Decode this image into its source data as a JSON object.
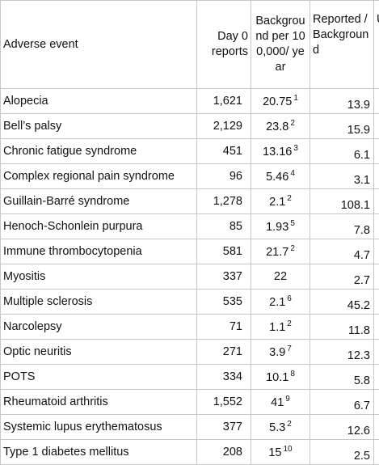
{
  "table": {
    "columns": [
      "Adverse event",
      "Day 0 reports",
      "Background per 100,000/ year",
      "Reported /Background",
      "U"
    ],
    "rows": [
      [
        "Alopecia",
        "1,621",
        {
          "value": "20.75",
          "ref": "1"
        },
        "13.9"
      ],
      [
        "Bell’s palsy",
        "2,129",
        {
          "value": "23.8",
          "ref": "2"
        },
        "15.9"
      ],
      [
        "Chronic fatigue syndrome",
        "451",
        {
          "value": "13.16",
          "ref": "3"
        },
        "6.1"
      ],
      [
        "Complex regional pain syndrome",
        "96",
        {
          "value": "5.46",
          "ref": "4"
        },
        "3.1"
      ],
      [
        "Guillain-Barré syndrome",
        "1,278",
        {
          "value": "2.1",
          "ref": "2"
        },
        "108.1"
      ],
      [
        "Henoch-Schonlein purpura",
        "85",
        {
          "value": "1.93",
          "ref": "5"
        },
        "7.8"
      ],
      [
        "Immune thrombocytopenia",
        "581",
        {
          "value": "21.7",
          "ref": "2"
        },
        "4.7"
      ],
      [
        "Myositis",
        "337",
        {
          "value": "22"
        },
        "2.7"
      ],
      [
        "Multiple sclerosis",
        "535",
        {
          "value": "2.1",
          "ref": "6"
        },
        "45.2"
      ],
      [
        "Narcolepsy",
        "71",
        {
          "value": "1.1",
          "ref": "2"
        },
        "11.8"
      ],
      [
        "Optic neuritis",
        "271",
        {
          "value": "3.9",
          "ref": "7"
        },
        "12.3"
      ],
      [
        "POTS",
        "334",
        {
          "value": "10.1",
          "ref": "8"
        },
        "5.8"
      ],
      [
        "Rheumatoid arthritis",
        "1,552",
        {
          "value": "41",
          "ref": "9"
        },
        "6.7"
      ],
      [
        "Systemic lupus erythematosus",
        "377",
        {
          "value": "5.3",
          "ref": "2"
        },
        "12.6"
      ],
      [
        "Type 1 diabetes mellitus",
        "208",
        {
          "value": "15",
          "ref": "10"
        },
        "2.5"
      ]
    ]
  }
}
